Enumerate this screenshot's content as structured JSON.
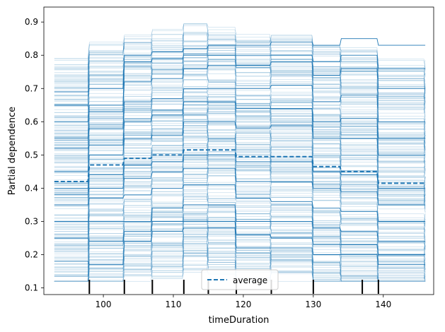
{
  "chart_data": {
    "type": "line",
    "title": "",
    "xlabel": "timeDuration",
    "ylabel": "Partial dependence",
    "xlim": [
      91.5,
      147.2
    ],
    "ylim": [
      0.08,
      0.945
    ],
    "x_ticks": [
      100,
      110,
      120,
      130,
      140
    ],
    "x_tick_labels": [
      "100",
      "110",
      "120",
      "130",
      "140"
    ],
    "y_ticks": [
      0.1,
      0.2,
      0.3,
      0.4,
      0.5,
      0.6,
      0.7,
      0.8,
      0.9
    ],
    "y_tick_labels": [
      "0.1",
      "0.2",
      "0.3",
      "0.4",
      "0.5",
      "0.6",
      "0.7",
      "0.8",
      "0.9"
    ],
    "grid": false,
    "legend": {
      "position": "lower center",
      "entries": [
        "average"
      ]
    },
    "ice_color": "#1f77b4",
    "x": [
      93,
      98,
      103,
      107,
      111.5,
      115,
      119,
      124,
      130,
      134,
      139.3,
      146
    ],
    "average": [
      0.42,
      0.47,
      0.49,
      0.5,
      0.515,
      0.515,
      0.495,
      0.495,
      0.465,
      0.45,
      0.415,
      0.41
    ],
    "ice_samples": [
      [
        0.69,
        0.7,
        0.8,
        0.81,
        0.82,
        0.83,
        0.83,
        0.84,
        0.83,
        0.85,
        0.83,
        0.83
      ],
      [
        0.6,
        0.65,
        0.72,
        0.73,
        0.76,
        0.77,
        0.77,
        0.78,
        0.74,
        0.76,
        0.7,
        0.7
      ],
      [
        0.55,
        0.58,
        0.66,
        0.67,
        0.7,
        0.7,
        0.7,
        0.71,
        0.66,
        0.68,
        0.6,
        0.6
      ],
      [
        0.45,
        0.5,
        0.55,
        0.56,
        0.6,
        0.6,
        0.58,
        0.59,
        0.55,
        0.55,
        0.5,
        0.5
      ],
      [
        0.4,
        0.44,
        0.47,
        0.48,
        0.5,
        0.5,
        0.48,
        0.48,
        0.45,
        0.44,
        0.4,
        0.4
      ],
      [
        0.35,
        0.37,
        0.38,
        0.4,
        0.41,
        0.41,
        0.37,
        0.36,
        0.34,
        0.33,
        0.3,
        0.3
      ],
      [
        0.3,
        0.3,
        0.3,
        0.34,
        0.35,
        0.35,
        0.3,
        0.3,
        0.28,
        0.27,
        0.24,
        0.24
      ],
      [
        0.25,
        0.24,
        0.27,
        0.3,
        0.3,
        0.3,
        0.26,
        0.25,
        0.23,
        0.23,
        0.2,
        0.2
      ],
      [
        0.18,
        0.17,
        0.24,
        0.27,
        0.28,
        0.28,
        0.22,
        0.22,
        0.2,
        0.2,
        0.17,
        0.17
      ],
      [
        0.52,
        0.53,
        0.6,
        0.62,
        0.66,
        0.66,
        0.64,
        0.64,
        0.6,
        0.61,
        0.55,
        0.55
      ],
      [
        0.65,
        0.63,
        0.78,
        0.79,
        0.8,
        0.8,
        0.8,
        0.8,
        0.78,
        0.8,
        0.76,
        0.76
      ],
      [
        0.38,
        0.4,
        0.43,
        0.45,
        0.46,
        0.46,
        0.42,
        0.42,
        0.4,
        0.39,
        0.35,
        0.35
      ]
    ],
    "deciles": [
      98,
      103,
      107,
      111.5,
      115,
      119,
      124,
      130,
      137,
      139.3
    ]
  }
}
